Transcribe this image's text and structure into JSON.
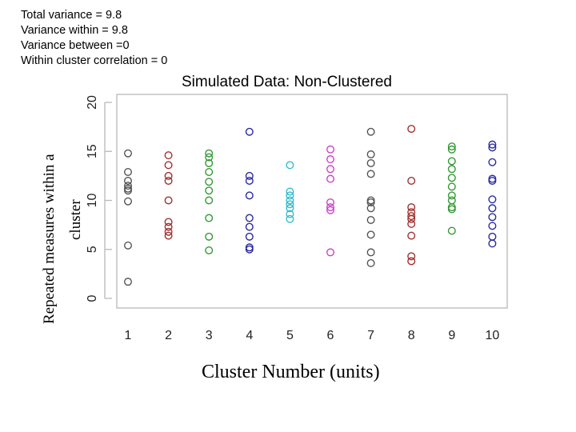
{
  "stats": {
    "line1": "Total variance  = 9.8",
    "line2": "Variance within = 9.8",
    "line3": "Variance between =0",
    "line4": "Within cluster correlation = 0"
  },
  "chart_data": {
    "type": "scatter",
    "title": "Simulated Data: Non-Clustered",
    "xlabel": "Cluster Number (units)",
    "ylabel_line1": "Repeated measures within a",
    "ylabel_line2": "cluster",
    "xlim": [
      0.5,
      10.5
    ],
    "ylim": [
      0,
      20
    ],
    "x_ticks": [
      "1",
      "2",
      "3",
      "4",
      "5",
      "6",
      "7",
      "8",
      "9",
      "10"
    ],
    "y_ticks": [
      "0",
      "5",
      "10",
      "15",
      "20"
    ],
    "marker": "open-circle",
    "grid": false,
    "legend": "none",
    "series": [
      {
        "cluster": 1,
        "color": "#555555",
        "y": [
          14.8,
          12.9,
          12.0,
          11.5,
          11.2,
          11.0,
          9.9,
          5.4,
          1.7
        ]
      },
      {
        "cluster": 2,
        "color": "#a03030",
        "y": [
          14.6,
          13.6,
          12.5,
          12.0,
          10.0,
          7.8,
          7.3,
          6.8,
          6.4
        ]
      },
      {
        "cluster": 3,
        "color": "#339933",
        "y": [
          14.8,
          14.4,
          13.8,
          12.9,
          11.9,
          11.0,
          10.0,
          8.2,
          6.3,
          4.9
        ]
      },
      {
        "cluster": 4,
        "color": "#2a2aa0",
        "y": [
          17.0,
          12.5,
          12.0,
          10.5,
          8.2,
          7.3,
          6.3,
          5.2,
          5.0
        ]
      },
      {
        "cluster": 5,
        "color": "#33bbcc",
        "y": [
          13.6,
          10.9,
          10.5,
          10.0,
          9.6,
          9.2,
          8.6,
          8.1
        ]
      },
      {
        "cluster": 6,
        "color": "#cc44cc",
        "y": [
          15.2,
          14.2,
          13.2,
          12.2,
          9.8,
          9.3,
          9.0,
          4.7
        ]
      },
      {
        "cluster": 7,
        "color": "#555555",
        "y": [
          17.0,
          14.7,
          13.8,
          12.7,
          10.0,
          9.8,
          9.2,
          8.0,
          6.5,
          4.7,
          3.6
        ]
      },
      {
        "cluster": 8,
        "color": "#a03030",
        "y": [
          17.3,
          12.0,
          9.3,
          8.8,
          8.4,
          8.1,
          7.6,
          6.4,
          4.3,
          3.8
        ]
      },
      {
        "cluster": 9,
        "color": "#339933",
        "y": [
          15.5,
          15.2,
          14.0,
          13.2,
          12.3,
          11.4,
          10.5,
          10.0,
          9.3,
          9.1,
          6.9
        ]
      },
      {
        "cluster": 10,
        "color": "#2a2aa0",
        "y": [
          15.7,
          15.4,
          13.9,
          12.2,
          12.0,
          10.1,
          9.2,
          8.3,
          7.4,
          6.3,
          5.6
        ]
      }
    ]
  }
}
